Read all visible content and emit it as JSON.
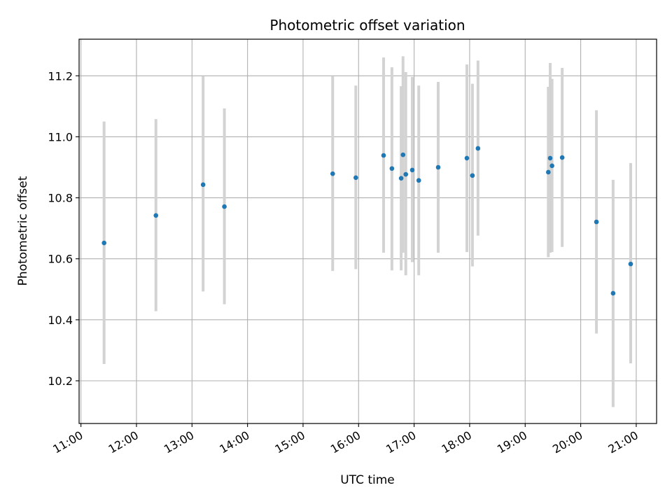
{
  "chart_data": {
    "type": "scatter",
    "title": "Photometric offset variation",
    "xlabel": "UTC time",
    "ylabel": "Photometric offset",
    "x_ticks": [
      "11:00",
      "12:00",
      "13:00",
      "14:00",
      "15:00",
      "16:00",
      "17:00",
      "18:00",
      "19:00",
      "20:00",
      "21:00"
    ],
    "y_ticks": [
      "10.2",
      "10.4",
      "10.6",
      "10.8",
      "11.0",
      "11.2"
    ],
    "xlim": [
      "10:58",
      "21:22"
    ],
    "ylim": [
      10.06,
      11.32
    ],
    "grid": true,
    "points": [
      {
        "x": "11:25",
        "y": 10.652,
        "low": 10.255,
        "high": 11.05
      },
      {
        "x": "12:21",
        "y": 10.742,
        "low": 10.428,
        "high": 11.058
      },
      {
        "x": "13:12",
        "y": 10.843,
        "low": 10.493,
        "high": 11.198
      },
      {
        "x": "13:35",
        "y": 10.771,
        "low": 10.451,
        "high": 11.093
      },
      {
        "x": "15:32",
        "y": 10.879,
        "low": 10.56,
        "high": 11.198
      },
      {
        "x": "15:57",
        "y": 10.866,
        "low": 10.566,
        "high": 11.168
      },
      {
        "x": "16:27",
        "y": 10.939,
        "low": 10.62,
        "high": 11.26
      },
      {
        "x": "16:36",
        "y": 10.896,
        "low": 10.562,
        "high": 11.228
      },
      {
        "x": "16:46",
        "y": 10.864,
        "low": 10.562,
        "high": 11.166
      },
      {
        "x": "16:48",
        "y": 10.941,
        "low": 10.62,
        "high": 11.264
      },
      {
        "x": "16:51",
        "y": 10.877,
        "low": 10.546,
        "high": 11.212
      },
      {
        "x": "16:58",
        "y": 10.891,
        "low": 10.589,
        "high": 11.196
      },
      {
        "x": "17:05",
        "y": 10.857,
        "low": 10.546,
        "high": 11.168
      },
      {
        "x": "17:26",
        "y": 10.9,
        "low": 10.62,
        "high": 11.18
      },
      {
        "x": "17:57",
        "y": 10.93,
        "low": 10.622,
        "high": 11.237
      },
      {
        "x": "18:03",
        "y": 10.873,
        "low": 10.575,
        "high": 11.174
      },
      {
        "x": "18:09",
        "y": 10.962,
        "low": 10.676,
        "high": 11.25
      },
      {
        "x": "19:25",
        "y": 10.884,
        "low": 10.605,
        "high": 11.164
      },
      {
        "x": "19:27",
        "y": 10.93,
        "low": 10.62,
        "high": 11.242
      },
      {
        "x": "19:29",
        "y": 10.905,
        "low": 10.622,
        "high": 11.19
      },
      {
        "x": "19:40",
        "y": 10.932,
        "low": 10.639,
        "high": 11.226
      },
      {
        "x": "20:17",
        "y": 10.721,
        "low": 10.355,
        "high": 11.087
      },
      {
        "x": "20:35",
        "y": 10.487,
        "low": 10.114,
        "high": 10.859
      },
      {
        "x": "20:54",
        "y": 10.583,
        "low": 10.257,
        "high": 10.914
      }
    ],
    "colors": {
      "marker": "#1f77b4",
      "errorbar": "#d3d3d3",
      "grid": "#b0b0b0",
      "axes": "#000000"
    }
  }
}
